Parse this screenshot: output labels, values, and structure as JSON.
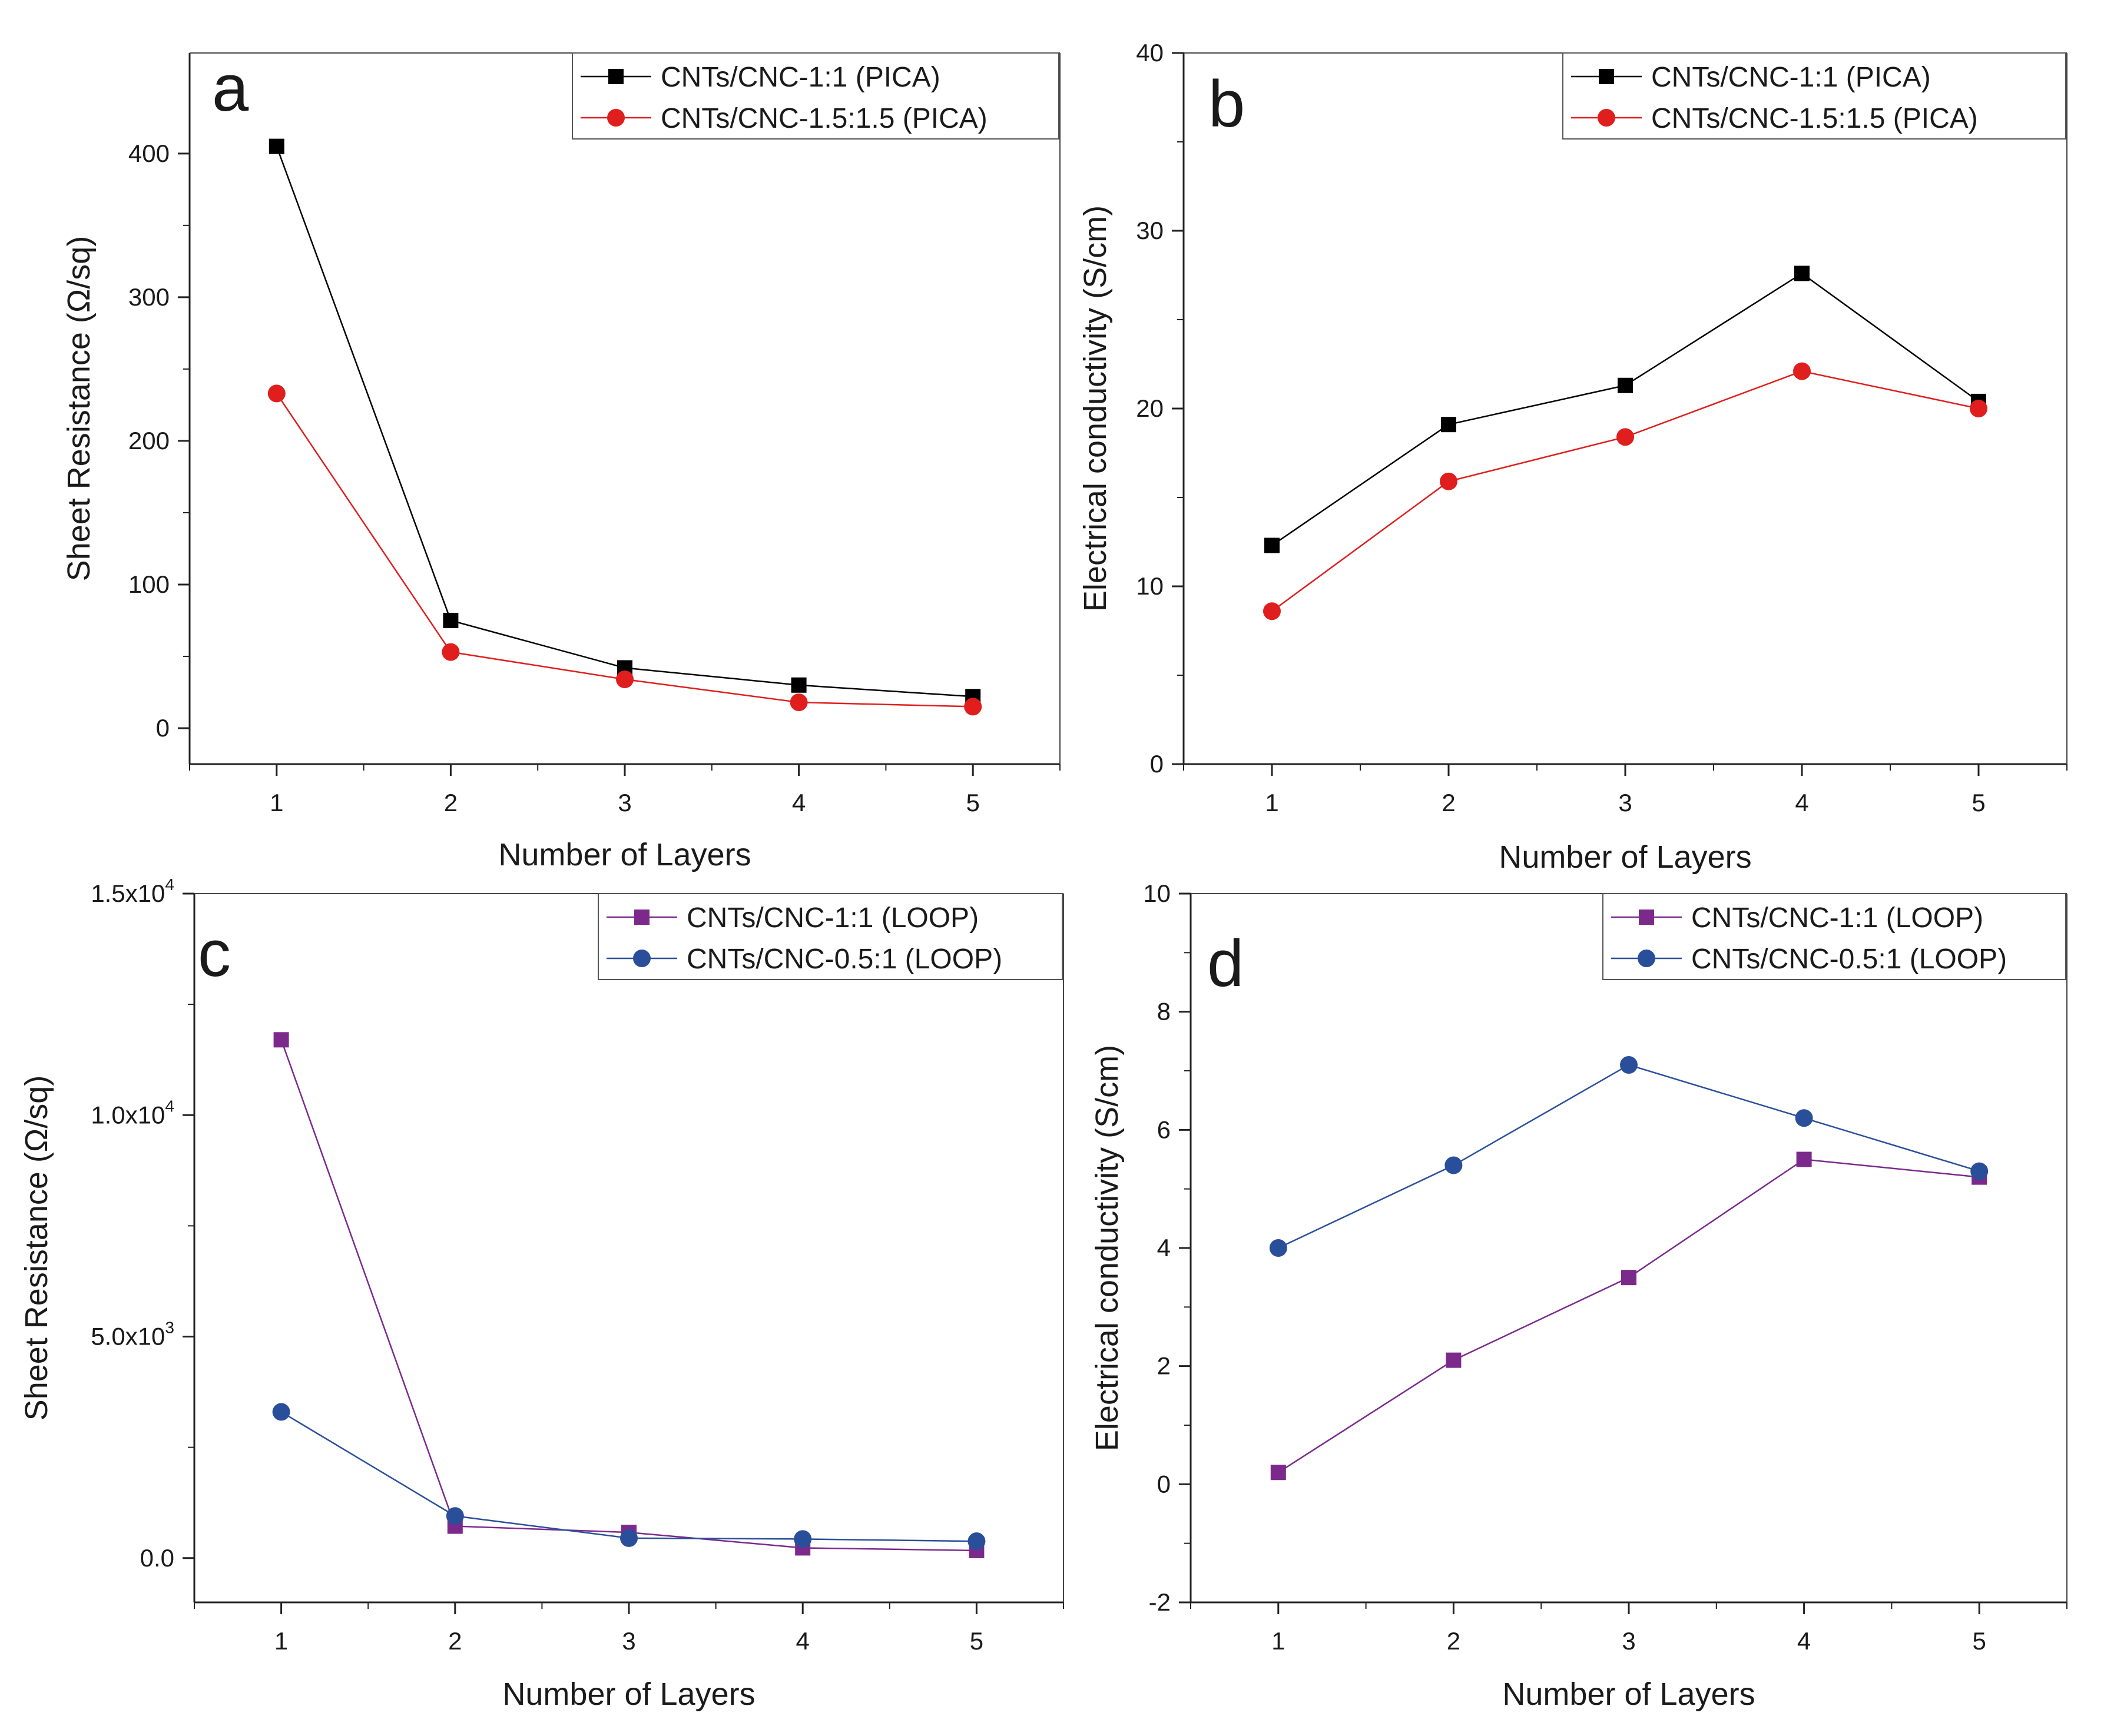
{
  "chart_data": [
    {
      "panel": "a",
      "type": "line",
      "xlabel": "Number of Layers",
      "ylabel": "Sheet Resistance (Ω/sq)",
      "x": [
        1,
        2,
        3,
        4,
        5
      ],
      "xticks": [
        "1",
        "2",
        "3",
        "4",
        "5"
      ],
      "xlim": [
        0.5,
        5.5
      ],
      "ylim": [
        -25,
        470
      ],
      "yticks": [
        0,
        100,
        200,
        300,
        400
      ],
      "ytick_labels": [
        "0",
        "100",
        "200",
        "300",
        "400"
      ],
      "legend_position": "top-right",
      "series": [
        {
          "name": "CNTs/CNC-1:1 (PICA)",
          "color": "#000000",
          "marker": "square",
          "values": [
            405,
            75,
            42,
            30,
            22
          ]
        },
        {
          "name": "CNTs/CNC-1.5:1.5 (PICA)",
          "color": "#e01e1e",
          "marker": "circle",
          "values": [
            233,
            53,
            34,
            18,
            15
          ]
        }
      ]
    },
    {
      "panel": "b",
      "type": "line",
      "xlabel": "Number of Layers",
      "ylabel": "Electrical conductivity (S/cm)",
      "x": [
        1,
        2,
        3,
        4,
        5
      ],
      "xticks": [
        "1",
        "2",
        "3",
        "4",
        "5"
      ],
      "xlim": [
        0.5,
        5.5
      ],
      "ylim": [
        0,
        40
      ],
      "yticks": [
        0,
        10,
        20,
        30,
        40
      ],
      "ytick_labels": [
        "0",
        "10",
        "20",
        "30",
        "40"
      ],
      "legend_position": "top-right",
      "series": [
        {
          "name": "CNTs/CNC-1:1 (PICA)",
          "color": "#000000",
          "marker": "square",
          "values": [
            12.3,
            19.1,
            21.3,
            27.6,
            20.4
          ]
        },
        {
          "name": "CNTs/CNC-1.5:1.5 (PICA)",
          "color": "#e01e1e",
          "marker": "circle",
          "values": [
            8.6,
            15.9,
            18.4,
            22.1,
            20.0
          ]
        }
      ]
    },
    {
      "panel": "c",
      "type": "line",
      "xlabel": "Number of Layers",
      "ylabel": "Sheet Resistance (Ω/sq)",
      "x": [
        1,
        2,
        3,
        4,
        5
      ],
      "xticks": [
        "1",
        "2",
        "3",
        "4",
        "5"
      ],
      "xlim": [
        0.5,
        5.5
      ],
      "ylim": [
        -1000,
        15000
      ],
      "yticks": [
        0,
        5000,
        10000,
        15000
      ],
      "ytick_labels": [
        {
          "mantissa": "0.0",
          "exp": ""
        },
        {
          "mantissa": "5.0x10",
          "exp": "3"
        },
        {
          "mantissa": "1.0x10",
          "exp": "4"
        },
        {
          "mantissa": "1.5x10",
          "exp": "4"
        }
      ],
      "legend_position": "top-right",
      "series": [
        {
          "name": "CNTs/CNC-1:1 (LOOP)",
          "color": "#7b2a8c",
          "marker": "square",
          "values": [
            11700,
            720,
            580,
            230,
            170
          ]
        },
        {
          "name": "CNTs/CNC-0.5:1 (LOOP)",
          "color": "#2a4f9a",
          "marker": "circle",
          "values": [
            3300,
            950,
            450,
            430,
            380
          ]
        }
      ]
    },
    {
      "panel": "d",
      "type": "line",
      "xlabel": "Number of Layers",
      "ylabel": "Electrical conductivity (S/cm)",
      "x": [
        1,
        2,
        3,
        4,
        5
      ],
      "xticks": [
        "1",
        "2",
        "3",
        "4",
        "5"
      ],
      "xlim": [
        0.5,
        5.5
      ],
      "ylim": [
        -2,
        10
      ],
      "yticks": [
        -2,
        0,
        2,
        4,
        6,
        8,
        10
      ],
      "ytick_labels": [
        "-2",
        "0",
        "2",
        "4",
        "6",
        "8",
        "10"
      ],
      "legend_position": "top-right",
      "series": [
        {
          "name": "CNTs/CNC-1:1 (LOOP)",
          "color": "#7b2a8c",
          "marker": "square",
          "values": [
            0.2,
            2.1,
            3.5,
            5.5,
            5.2
          ]
        },
        {
          "name": "CNTs/CNC-0.5:1 (LOOP)",
          "color": "#2a4f9a",
          "marker": "circle",
          "values": [
            4.0,
            5.4,
            7.1,
            6.2,
            5.3
          ]
        }
      ]
    }
  ]
}
